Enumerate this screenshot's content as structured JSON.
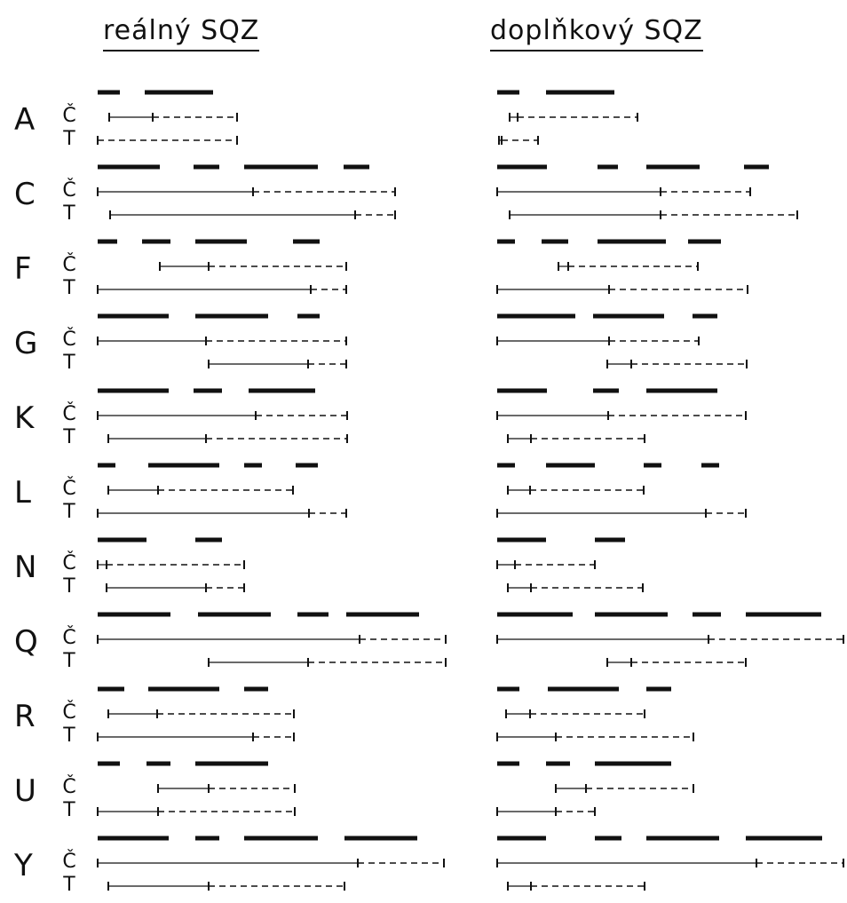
{
  "headings": {
    "left": "reálný SQZ",
    "right": "doplňkový SQZ"
  },
  "row_labels": {
    "c": "Č",
    "t": "T"
  },
  "groups": [
    {
      "letter": "A",
      "real": {
        "bars": [
          [
            0,
            25
          ],
          [
            53,
            130
          ]
        ],
        "c": [
          [
            13,
            62,
            157
          ]
        ],
        "t": [
          [
            0,
            0,
            157
          ]
        ]
      },
      "compl": {
        "bars": [
          [
            0,
            25
          ],
          [
            55,
            132
          ]
        ],
        "c": [
          [
            14,
            23,
            158
          ]
        ],
        "t": [
          [
            2,
            5,
            46
          ]
        ]
      }
    },
    {
      "letter": "C",
      "real": {
        "bars": [
          [
            0,
            70
          ],
          [
            108,
            137
          ],
          [
            165,
            248
          ],
          [
            277,
            306
          ]
        ],
        "c": [
          [
            0,
            175,
            335
          ]
        ],
        "t": [
          [
            14,
            290,
            335
          ]
        ]
      },
      "compl": {
        "bars": [
          [
            0,
            56
          ],
          [
            113,
            136
          ],
          [
            168,
            228
          ],
          [
            278,
            306
          ]
        ],
        "c": [
          [
            0,
            184,
            285
          ]
        ],
        "t": [
          [
            14,
            184,
            338
          ]
        ]
      }
    },
    {
      "letter": "F",
      "real": {
        "bars": [
          [
            0,
            22
          ],
          [
            50,
            82
          ],
          [
            110,
            168
          ],
          [
            220,
            250
          ]
        ],
        "c": [
          [
            70,
            125,
            280
          ]
        ],
        "t": [
          [
            0,
            240,
            280
          ]
        ]
      },
      "compl": {
        "bars": [
          [
            0,
            20
          ],
          [
            50,
            80
          ],
          [
            113,
            190
          ],
          [
            215,
            252
          ]
        ],
        "c": [
          [
            69,
            80,
            226
          ]
        ],
        "t": [
          [
            0,
            126,
            282
          ]
        ]
      }
    },
    {
      "letter": "G",
      "real": {
        "bars": [
          [
            0,
            80
          ],
          [
            110,
            192
          ],
          [
            225,
            250
          ]
        ],
        "c": [
          [
            0,
            122,
            280
          ]
        ],
        "t": [
          [
            125,
            237,
            280
          ]
        ]
      },
      "compl": {
        "bars": [
          [
            0,
            88
          ],
          [
            108,
            188
          ],
          [
            220,
            248
          ]
        ],
        "c": [
          [
            0,
            126,
            227
          ]
        ],
        "t": [
          [
            124,
            151,
            281
          ]
        ]
      }
    },
    {
      "letter": "K",
      "real": {
        "bars": [
          [
            0,
            80
          ],
          [
            108,
            140
          ],
          [
            170,
            245
          ]
        ],
        "c": [
          [
            0,
            178,
            281
          ]
        ],
        "t": [
          [
            12,
            122,
            281
          ]
        ]
      },
      "compl": {
        "bars": [
          [
            0,
            56
          ],
          [
            108,
            137
          ],
          [
            168,
            248
          ]
        ],
        "c": [
          [
            0,
            125,
            280
          ]
        ],
        "t": [
          [
            12,
            38,
            166
          ]
        ]
      }
    },
    {
      "letter": "L",
      "real": {
        "bars": [
          [
            0,
            20
          ],
          [
            57,
            137
          ],
          [
            165,
            185
          ],
          [
            223,
            248
          ]
        ],
        "c": [
          [
            12,
            68,
            220
          ]
        ],
        "t": [
          [
            0,
            238,
            280
          ]
        ]
      },
      "compl": {
        "bars": [
          [
            0,
            20
          ],
          [
            55,
            110
          ],
          [
            165,
            185
          ],
          [
            230,
            250
          ]
        ],
        "c": [
          [
            12,
            37,
            165
          ]
        ],
        "t": [
          [
            0,
            235,
            280
          ]
        ]
      }
    },
    {
      "letter": "N",
      "real": {
        "bars": [
          [
            0,
            55
          ],
          [
            110,
            140
          ]
        ],
        "c": [
          [
            0,
            10,
            165
          ]
        ],
        "t": [
          [
            10,
            122,
            165
          ]
        ]
      },
      "compl": {
        "bars": [
          [
            0,
            55
          ],
          [
            110,
            144
          ]
        ],
        "c": [
          [
            0,
            20,
            110
          ]
        ],
        "t": [
          [
            12,
            38,
            164
          ]
        ]
      }
    },
    {
      "letter": "Q",
      "real": {
        "bars": [
          [
            0,
            82
          ],
          [
            113,
            195
          ],
          [
            225,
            260
          ],
          [
            280,
            362
          ]
        ],
        "c": [
          [
            0,
            295,
            392
          ]
        ],
        "t": [
          [
            125,
            237,
            392
          ]
        ]
      },
      "compl": {
        "bars": [
          [
            0,
            85
          ],
          [
            110,
            192
          ],
          [
            220,
            252
          ],
          [
            280,
            365
          ]
        ],
        "c": [
          [
            0,
            238,
            390
          ]
        ],
        "t": [
          [
            124,
            151,
            280
          ]
        ]
      }
    },
    {
      "letter": "R",
      "real": {
        "bars": [
          [
            0,
            30
          ],
          [
            57,
            137
          ],
          [
            165,
            192
          ]
        ],
        "c": [
          [
            12,
            67,
            221
          ]
        ],
        "t": [
          [
            0,
            175,
            221
          ]
        ]
      },
      "compl": {
        "bars": [
          [
            0,
            25
          ],
          [
            57,
            137
          ],
          [
            168,
            196
          ]
        ],
        "c": [
          [
            10,
            37,
            166
          ]
        ],
        "t": [
          [
            0,
            66,
            221
          ]
        ]
      }
    },
    {
      "letter": "U",
      "real": {
        "bars": [
          [
            0,
            25
          ],
          [
            55,
            82
          ],
          [
            110,
            192
          ]
        ],
        "c": [
          [
            68,
            125,
            222
          ]
        ],
        "t": [
          [
            0,
            68,
            222
          ]
        ]
      },
      "compl": {
        "bars": [
          [
            0,
            25
          ],
          [
            55,
            82
          ],
          [
            110,
            196
          ]
        ],
        "c": [
          [
            66,
            100,
            221
          ]
        ],
        "t": [
          [
            0,
            66,
            110
          ]
        ]
      }
    },
    {
      "letter": "Y",
      "real": {
        "bars": [
          [
            0,
            80
          ],
          [
            110,
            137
          ],
          [
            165,
            248
          ],
          [
            278,
            360
          ]
        ],
        "c": [
          [
            0,
            293,
            390
          ]
        ],
        "t": [
          [
            12,
            125,
            278
          ]
        ]
      },
      "compl": {
        "bars": [
          [
            0,
            55
          ],
          [
            110,
            140
          ],
          [
            168,
            250
          ],
          [
            280,
            366
          ]
        ],
        "c": [
          [
            0,
            292,
            390
          ]
        ],
        "t": [
          [
            12,
            38,
            166
          ]
        ]
      }
    }
  ]
}
